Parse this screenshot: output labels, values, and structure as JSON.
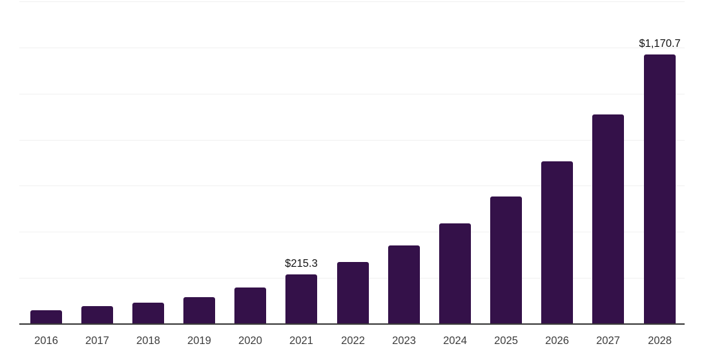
{
  "chart_data": {
    "type": "bar",
    "title": "",
    "xlabel": "",
    "ylabel": "",
    "categories": [
      "2016",
      "2017",
      "2018",
      "2019",
      "2020",
      "2021",
      "2022",
      "2023",
      "2024",
      "2025",
      "2026",
      "2027",
      "2028"
    ],
    "values": [
      60,
      77,
      93,
      116,
      158,
      215.3,
      268,
      340,
      436,
      552,
      706,
      909,
      1170.7
    ],
    "data_labels": [
      {
        "category": "2021",
        "text": "$215.3"
      },
      {
        "category": "2028",
        "text": "$1,170.7"
      }
    ],
    "ylim": [
      0,
      1400
    ],
    "gridline_step": 200,
    "grid": "horizontal-only",
    "legend": "none",
    "y_axis_ticks_visible": false,
    "colors": {
      "bar": "#341149",
      "gridline": "#f1f1f1",
      "axis_line": "#3b3b3b",
      "tick_label": "#3a3a3a",
      "data_label": "#111111",
      "background": "#ffffff"
    }
  }
}
